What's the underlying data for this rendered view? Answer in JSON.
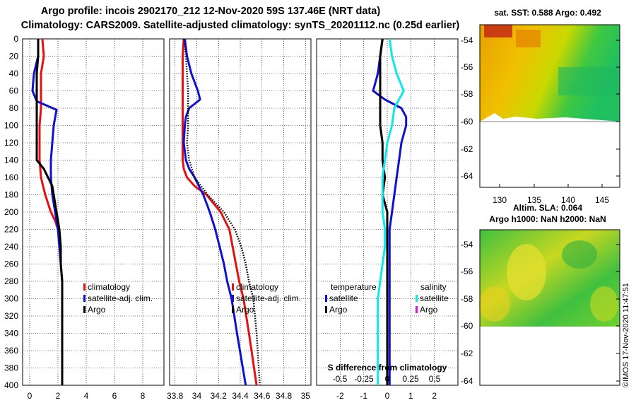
{
  "title": {
    "line1": "Argo profile: incois 2902170_212 12-Nov-2020 59S 137.46E (NRT data)",
    "line2": "Climatology: CARS2009. Satellite-adjusted climatology: synTS_20201112.nc (0.25d earlier)"
  },
  "depth_axis": {
    "range": [
      0,
      400
    ],
    "ticks": [
      0,
      20,
      40,
      60,
      80,
      100,
      120,
      140,
      160,
      180,
      200,
      220,
      240,
      260,
      280,
      300,
      320,
      340,
      360,
      380,
      400
    ]
  },
  "colors": {
    "climatology": "#e81010",
    "satellite": "#1010d0",
    "argo": "#000000",
    "salinity_sat": "#10e8e8",
    "salinity_argo": "#e010e0"
  },
  "chart_data": [
    {
      "type": "line",
      "title": "Temperature profile",
      "xlim": [
        -0.5,
        9.5
      ],
      "ylim": [
        0,
        400
      ],
      "xticks": [
        0,
        2,
        4,
        6,
        8
      ],
      "legend": {
        "placement": "bottom-right",
        "entries": [
          "climatology",
          "satellite-adj. clim.",
          "Argo"
        ]
      },
      "series": [
        {
          "name": "climatology",
          "color": "#e81010",
          "x": [
            0.9,
            1.0,
            0.8,
            0.8,
            0.8,
            0.7,
            0.7,
            0.7,
            0.8,
            1.1,
            1.5,
            1.8,
            2.0
          ],
          "y": [
            0,
            20,
            40,
            60,
            80,
            100,
            120,
            140,
            160,
            180,
            200,
            210,
            220
          ]
        },
        {
          "name": "satellite-adj. clim.",
          "color": "#1010d0",
          "x": [
            0.6,
            0.6,
            0.3,
            0.2,
            0.5,
            1.9,
            1.7,
            1.6,
            1.5,
            1.5,
            1.6,
            1.8,
            2.0,
            2.1,
            2.2,
            2.3,
            2.3,
            2.3,
            2.3,
            2.3,
            2.3,
            2.3
          ],
          "y": [
            0,
            20,
            40,
            60,
            72,
            82,
            100,
            120,
            140,
            160,
            180,
            200,
            220,
            240,
            260,
            280,
            300,
            320,
            340,
            360,
            380,
            400
          ]
        },
        {
          "name": "Argo",
          "color": "#000000",
          "x": [
            0.6,
            0.6,
            0.5,
            0.5,
            0.5,
            0.5,
            0.5,
            0.5,
            1.0,
            1.6,
            1.9,
            2.1,
            2.2,
            2.2,
            2.3,
            2.3,
            2.3,
            2.3,
            2.3,
            2.3,
            2.3
          ],
          "y": [
            0,
            20,
            40,
            60,
            80,
            100,
            120,
            140,
            150,
            170,
            200,
            220,
            240,
            260,
            280,
            300,
            320,
            340,
            360,
            380,
            400
          ]
        }
      ]
    },
    {
      "type": "line",
      "title": "Salinity profile",
      "xlim": [
        33.75,
        35.05
      ],
      "ylim": [
        0,
        400
      ],
      "xticks": [
        33.8,
        34,
        34.2,
        34.4,
        34.6,
        34.8,
        35
      ],
      "xticklabels": [
        "33.8",
        "34",
        "34.2",
        "34.4",
        "34.6",
        "34.8",
        "35"
      ],
      "legend": {
        "placement": "bottom-right",
        "entries": [
          "climatology",
          "satellite-adj. clim.",
          "Argo"
        ]
      },
      "series": [
        {
          "name": "climatology",
          "color": "#e81010",
          "x": [
            33.88,
            33.87,
            33.87,
            33.87,
            33.87,
            33.87,
            33.87,
            33.88,
            33.91,
            33.98,
            34.09,
            34.22,
            34.3,
            34.33,
            34.36,
            34.39,
            34.43,
            34.48,
            34.55
          ],
          "y": [
            0,
            20,
            60,
            80,
            100,
            120,
            140,
            150,
            160,
            170,
            180,
            200,
            220,
            240,
            260,
            280,
            300,
            340,
            400
          ]
        },
        {
          "name": "satellite-adj. clim.",
          "color": "#1010d0",
          "x": [
            33.89,
            33.91,
            33.95,
            34.01,
            34.03,
            33.93,
            33.9,
            33.89,
            33.88,
            33.9,
            33.93,
            33.98,
            34.06,
            34.12,
            34.17,
            34.21,
            34.25,
            34.28,
            34.32,
            34.37,
            34.45
          ],
          "y": [
            0,
            20,
            40,
            60,
            70,
            80,
            90,
            100,
            120,
            140,
            150,
            160,
            180,
            200,
            220,
            240,
            260,
            280,
            300,
            340,
            400
          ]
        },
        {
          "name": "Argo",
          "color": "#000000",
          "dotted": true,
          "x": [
            33.88,
            33.9,
            33.91,
            33.92,
            33.92,
            33.92,
            33.91,
            33.93,
            33.98,
            34.1,
            34.25,
            34.35,
            34.41,
            34.45,
            34.48,
            34.52,
            34.55,
            34.58
          ],
          "y": [
            0,
            20,
            40,
            60,
            80,
            100,
            120,
            140,
            160,
            180,
            200,
            220,
            240,
            260,
            280,
            300,
            340,
            400
          ]
        }
      ]
    },
    {
      "type": "line",
      "title": "Difference from climatology",
      "xlim": [
        -3,
        3
      ],
      "ylim": [
        0,
        400
      ],
      "xticks": [
        -2,
        -1,
        0,
        1,
        2
      ],
      "xticklabels": [
        "-2",
        "-1",
        "0",
        "1",
        "2"
      ],
      "secondary_label": "S difference from climatology",
      "secondary_ticklabels": [
        "-0.5",
        "-0.25",
        "0",
        "0.25",
        "0.5"
      ],
      "legend": {
        "placement": "bottom",
        "groups": [
          {
            "title": "temperature",
            "entries": [
              "satellite",
              "Argo"
            ]
          },
          {
            "title": "salinity",
            "entries": [
              "satellite",
              "Argo"
            ]
          }
        ]
      },
      "series": [
        {
          "name": "temperature satellite",
          "color": "#1010d0",
          "x": [
            -0.2,
            -0.3,
            -0.4,
            -0.6,
            -0.1,
            0.6,
            0.8,
            0.8,
            0.6,
            0.5,
            0.4,
            0.3,
            0.2,
            0.1,
            0.1,
            0.1,
            0.1,
            0.1,
            0.1,
            0.1
          ],
          "y": [
            0,
            20,
            40,
            60,
            70,
            80,
            90,
            100,
            120,
            140,
            160,
            180,
            200,
            220,
            240,
            260,
            280,
            300,
            340,
            400
          ]
        },
        {
          "name": "temperature Argo",
          "color": "#000000",
          "x": [
            -0.2,
            -0.3,
            -0.3,
            -0.3,
            -0.3,
            -0.3,
            -0.2,
            -0.2,
            -0.1,
            -0.2,
            -0.1,
            0.0,
            0.0,
            0.0,
            0.0,
            0.0,
            0.0,
            0.0,
            0.0,
            0.0
          ],
          "y": [
            0,
            20,
            40,
            60,
            80,
            100,
            120,
            140,
            160,
            180,
            190,
            200,
            220,
            240,
            260,
            280,
            300,
            340,
            380,
            400
          ]
        },
        {
          "name": "salinity satellite",
          "color": "#10e8e8",
          "x": [
            0.1,
            0.2,
            0.4,
            0.7,
            0.3,
            0.2,
            0.0,
            -0.1,
            -0.2,
            -0.2,
            -0.2,
            -0.1,
            -0.1,
            -0.2,
            -0.3,
            -0.4,
            -0.4,
            -0.4,
            -0.4
          ],
          "y": [
            0,
            20,
            40,
            60,
            80,
            100,
            120,
            140,
            160,
            180,
            200,
            220,
            240,
            260,
            280,
            300,
            340,
            380,
            400
          ]
        }
      ]
    }
  ],
  "maps": [
    {
      "title": "sat. SST: 0.588 Argo: 0.492",
      "lat_ticks": [
        "-54",
        "-56",
        "-58",
        "-60",
        "-62",
        "-64"
      ],
      "lon_ticks": [
        "130",
        "135",
        "140",
        "145"
      ]
    },
    {
      "title": "Altim. SLA: 0.064",
      "subtitle": "Argo h1000: NaN h2000: NaN",
      "lat_ticks": [
        "-54",
        "-56",
        "-58",
        "-60",
        "-62",
        "-64"
      ]
    }
  ],
  "footer": "©IMOS 17-Nov-2020 11:47:51"
}
